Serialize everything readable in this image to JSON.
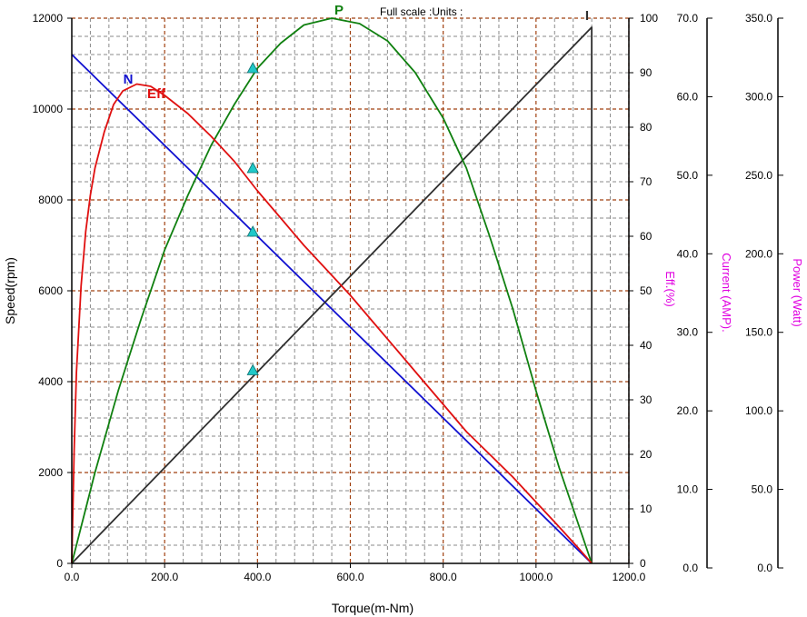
{
  "chart_data": {
    "type": "line",
    "note": "Full scale :Units :",
    "xlabel": "Torque(m-Nm)",
    "xlim": [
      0,
      1200
    ],
    "x_ticks": [
      "0.0",
      "200.0",
      "400.0",
      "600.0",
      "800.0",
      "1000.0",
      "1200.0"
    ],
    "ylabel": "Speed(rpm)",
    "ylim": [
      0,
      12000
    ],
    "y_ticks": [
      "0",
      "2000",
      "4000",
      "6000",
      "8000",
      "10000",
      "12000"
    ],
    "eff_axis": {
      "label": "Eff.(%)",
      "range": [
        0,
        100
      ],
      "ticks": [
        "0",
        "10",
        "20",
        "30",
        "40",
        "50",
        "60",
        "70",
        "80",
        "90",
        "100"
      ]
    },
    "current_axis": {
      "label": "Current (AMP).",
      "range": [
        0,
        70
      ],
      "ticks": [
        "0.0",
        "10.0",
        "20.0",
        "30.0",
        "40.0",
        "50.0",
        "60.0",
        "70.0"
      ]
    },
    "power_axis": {
      "label": "Power (Watt)",
      "range": [
        0,
        350
      ],
      "ticks": [
        "0.0",
        "50.0",
        "100.0",
        "150.0",
        "200.0",
        "250.0",
        "300.0",
        "350.0"
      ]
    },
    "grid": true,
    "series": [
      {
        "name": "N",
        "axis": "speed",
        "color": "#1010d0",
        "points": [
          [
            0,
            11200
          ],
          [
            1120,
            0
          ]
        ]
      },
      {
        "name": "I",
        "axis": "speed",
        "color": "#303030",
        "points": [
          [
            0,
            0
          ],
          [
            1120,
            11800
          ],
          [
            1120,
            0
          ]
        ]
      },
      {
        "name": "P",
        "axis": "speed",
        "color": "#108010",
        "points": [
          [
            0,
            0
          ],
          [
            50,
            2000
          ],
          [
            100,
            3800
          ],
          [
            150,
            5400
          ],
          [
            200,
            6900
          ],
          [
            250,
            8100
          ],
          [
            300,
            9200
          ],
          [
            350,
            10100
          ],
          [
            400,
            10900
          ],
          [
            450,
            11450
          ],
          [
            500,
            11850
          ],
          [
            560,
            12000
          ],
          [
            620,
            11880
          ],
          [
            680,
            11500
          ],
          [
            740,
            10800
          ],
          [
            800,
            9800
          ],
          [
            850,
            8700
          ],
          [
            900,
            7200
          ],
          [
            950,
            5600
          ],
          [
            1000,
            3800
          ],
          [
            1050,
            2100
          ],
          [
            1090,
            900
          ],
          [
            1120,
            0
          ]
        ]
      },
      {
        "name": "Eff",
        "axis": "speed",
        "color": "#e01010",
        "points": [
          [
            0,
            0
          ],
          [
            5,
            2500
          ],
          [
            10,
            4200
          ],
          [
            20,
            6100
          ],
          [
            30,
            7300
          ],
          [
            40,
            8100
          ],
          [
            50,
            8700
          ],
          [
            70,
            9500
          ],
          [
            90,
            10100
          ],
          [
            110,
            10400
          ],
          [
            140,
            10550
          ],
          [
            170,
            10500
          ],
          [
            200,
            10300
          ],
          [
            250,
            9900
          ],
          [
            300,
            9400
          ],
          [
            350,
            8850
          ],
          [
            400,
            8200
          ],
          [
            450,
            7600
          ],
          [
            500,
            7000
          ],
          [
            550,
            6450
          ],
          [
            600,
            5900
          ],
          [
            650,
            5300
          ],
          [
            700,
            4700
          ],
          [
            750,
            4100
          ],
          [
            800,
            3500
          ],
          [
            850,
            2900
          ],
          [
            900,
            2400
          ],
          [
            950,
            1900
          ],
          [
            1000,
            1350
          ],
          [
            1050,
            800
          ],
          [
            1090,
            350
          ],
          [
            1120,
            0
          ]
        ]
      }
    ],
    "markers": [
      [
        390,
        4250
      ],
      [
        390,
        7300
      ],
      [
        390,
        8700
      ],
      [
        390,
        10900
      ]
    ],
    "marker_color": "#20c8c8"
  }
}
